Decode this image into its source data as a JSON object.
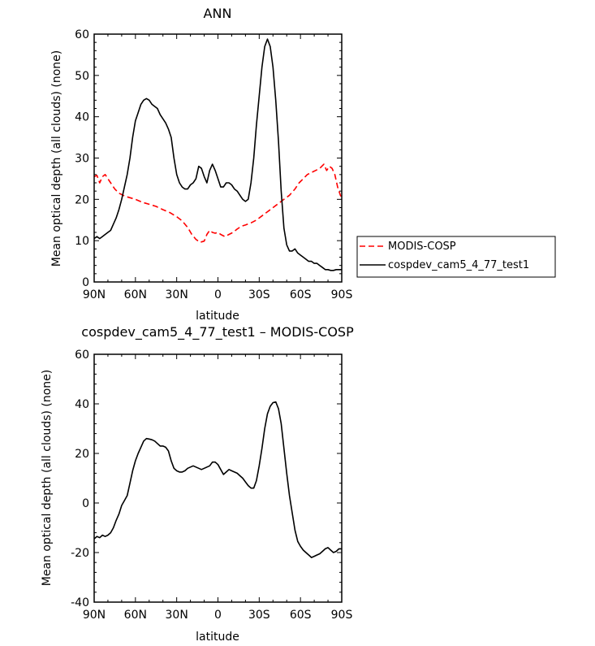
{
  "chart_data": [
    {
      "type": "line",
      "title": "ANN",
      "xlabel": "latitude",
      "ylabel": "Mean optical depth (all clouds) (none)",
      "x_tick_labels": [
        "90N",
        "60N",
        "30N",
        "0",
        "30S",
        "60S",
        "90S"
      ],
      "x_ticks": [
        90,
        60,
        30,
        0,
        -30,
        -60,
        -90
      ],
      "xlim": [
        90,
        -90
      ],
      "y_ticks": [
        0,
        10,
        20,
        30,
        40,
        50,
        60
      ],
      "ylim": [
        0,
        60
      ],
      "legend_position": "right",
      "series": [
        {
          "name": "MODIS-COSP",
          "color": "#ff0000",
          "dash": "dashed",
          "x": [
            90,
            88,
            86,
            84,
            82,
            80,
            78,
            75,
            72,
            69,
            66,
            63,
            60,
            55,
            50,
            45,
            40,
            35,
            30,
            26,
            22,
            19,
            16,
            13,
            10,
            8,
            6,
            4,
            2,
            0,
            -2,
            -5,
            -8,
            -11,
            -14,
            -17,
            -20,
            -24,
            -28,
            -32,
            -36,
            -40,
            -44,
            -48,
            -52,
            -56,
            -59,
            -62,
            -65,
            -68,
            -71,
            -74,
            -77,
            -79,
            -81,
            -83,
            -85,
            -87,
            -89,
            -90
          ],
          "y": [
            25.5,
            25.8,
            24.0,
            25.5,
            26.0,
            25.0,
            24.0,
            22.5,
            21.5,
            21.0,
            20.6,
            20.3,
            20.0,
            19.3,
            18.8,
            18.3,
            17.5,
            16.8,
            15.8,
            14.8,
            13.2,
            11.5,
            10.3,
            9.6,
            9.9,
            11.5,
            12.5,
            12.0,
            11.8,
            12.0,
            11.5,
            11.0,
            11.5,
            12.0,
            12.8,
            13.5,
            13.8,
            14.3,
            15.0,
            16.0,
            17.0,
            18.0,
            19.0,
            20.0,
            21.0,
            22.5,
            24.0,
            25.0,
            26.0,
            26.5,
            27.0,
            27.5,
            28.5,
            27.0,
            28.0,
            27.5,
            26.0,
            23.0,
            21.0,
            20.5
          ]
        },
        {
          "name": "cospdev_cam5_4_77_test1",
          "color": "#000000",
          "dash": "solid",
          "x": [
            90,
            88,
            86,
            84,
            82,
            80,
            78,
            76,
            74,
            72,
            70,
            68,
            66,
            64,
            62,
            60,
            58,
            56,
            54,
            52,
            50,
            48,
            46,
            44,
            42,
            40,
            38,
            36,
            34,
            32,
            30,
            28,
            26,
            24,
            22,
            20,
            18,
            16,
            14,
            12,
            10,
            8,
            6,
            4,
            2,
            0,
            -2,
            -4,
            -6,
            -8,
            -10,
            -12,
            -14,
            -16,
            -18,
            -20,
            -22,
            -24,
            -26,
            -28,
            -30,
            -32,
            -34,
            -36,
            -38,
            -40,
            -42,
            -44,
            -46,
            -48,
            -50,
            -52,
            -54,
            -56,
            -58,
            -60,
            -62,
            -64,
            -66,
            -68,
            -70,
            -72,
            -74,
            -76,
            -78,
            -80,
            -82,
            -84,
            -86,
            -88,
            -90
          ],
          "y": [
            10.5,
            11.0,
            10.5,
            11.0,
            11.5,
            12.0,
            12.5,
            14.0,
            15.5,
            17.5,
            20.0,
            23.0,
            26.0,
            30.0,
            35.0,
            39.0,
            41.0,
            43.0,
            44.0,
            44.4,
            44.0,
            43.0,
            42.5,
            42.0,
            40.5,
            39.5,
            38.5,
            37.0,
            35.0,
            30.0,
            26.0,
            24.0,
            23.0,
            22.5,
            22.5,
            23.5,
            24.0,
            25.0,
            28.0,
            27.5,
            25.5,
            24.0,
            27.0,
            28.5,
            27.0,
            25.0,
            23.0,
            23.0,
            24.0,
            24.0,
            23.5,
            22.5,
            22.0,
            21.0,
            20.0,
            19.5,
            20.0,
            24.0,
            30.0,
            38.0,
            45.0,
            52.0,
            57.0,
            58.8,
            57.0,
            52.0,
            44.0,
            34.0,
            22.0,
            13.0,
            9.0,
            7.5,
            7.5,
            8.0,
            7.0,
            6.5,
            6.0,
            5.5,
            5.0,
            5.0,
            4.5,
            4.5,
            4.0,
            3.5,
            3.0,
            3.0,
            2.8,
            2.8,
            3.0,
            3.0,
            3.0
          ]
        }
      ]
    },
    {
      "type": "line",
      "title": "cospdev_cam5_4_77_test1 – MODIS-COSP",
      "xlabel": "latitude",
      "ylabel": "Mean optical depth (all clouds) (none)",
      "x_tick_labels": [
        "90N",
        "60N",
        "30N",
        "0",
        "30S",
        "60S",
        "90S"
      ],
      "x_ticks": [
        90,
        60,
        30,
        0,
        -30,
        -60,
        -90
      ],
      "xlim": [
        90,
        -90
      ],
      "y_ticks": [
        -40,
        -20,
        0,
        20,
        40,
        60
      ],
      "ylim": [
        -40,
        60
      ],
      "series": [
        {
          "color": "#000000",
          "dash": "solid",
          "x": [
            90,
            88,
            86,
            84,
            82,
            80,
            78,
            76,
            74,
            72,
            70,
            68,
            66,
            64,
            62,
            60,
            58,
            56,
            54,
            52,
            50,
            48,
            46,
            44,
            42,
            40,
            38,
            36,
            34,
            32,
            30,
            28,
            26,
            24,
            22,
            20,
            18,
            16,
            14,
            12,
            10,
            8,
            6,
            4,
            2,
            0,
            -2,
            -4,
            -6,
            -8,
            -10,
            -12,
            -14,
            -16,
            -18,
            -20,
            -22,
            -24,
            -26,
            -28,
            -30,
            -32,
            -34,
            -36,
            -38,
            -40,
            -42,
            -44,
            -46,
            -48,
            -50,
            -52,
            -54,
            -56,
            -58,
            -60,
            -62,
            -64,
            -66,
            -68,
            -70,
            -72,
            -74,
            -76,
            -78,
            -80,
            -82,
            -84,
            -86,
            -88,
            -90
          ],
          "y": [
            -14.5,
            -13.5,
            -14.0,
            -13.0,
            -13.5,
            -13.0,
            -12.0,
            -10.0,
            -7.0,
            -4.5,
            -1.0,
            1.0,
            3.0,
            8.0,
            13.0,
            17.0,
            20.0,
            22.5,
            25.0,
            26.0,
            25.8,
            25.5,
            25.0,
            24.0,
            23.0,
            23.0,
            22.5,
            21.0,
            17.0,
            14.0,
            13.0,
            12.5,
            12.5,
            13.0,
            14.0,
            14.5,
            15.0,
            14.5,
            14.0,
            13.5,
            14.0,
            14.5,
            15.0,
            16.5,
            16.5,
            15.5,
            13.5,
            11.5,
            12.5,
            13.5,
            13.0,
            12.5,
            12.0,
            11.0,
            10.0,
            8.5,
            7.0,
            6.0,
            6.0,
            9.0,
            15.0,
            22.0,
            30.0,
            36.0,
            39.0,
            40.5,
            40.8,
            38.0,
            32.0,
            22.0,
            12.0,
            3.0,
            -4.0,
            -11.0,
            -15.5,
            -17.5,
            -19.0,
            -20.0,
            -21.0,
            -22.0,
            -21.5,
            -21.0,
            -20.5,
            -19.5,
            -18.5,
            -18.0,
            -19.0,
            -20.0,
            -19.5,
            -18.5,
            -18.5
          ]
        }
      ]
    }
  ]
}
